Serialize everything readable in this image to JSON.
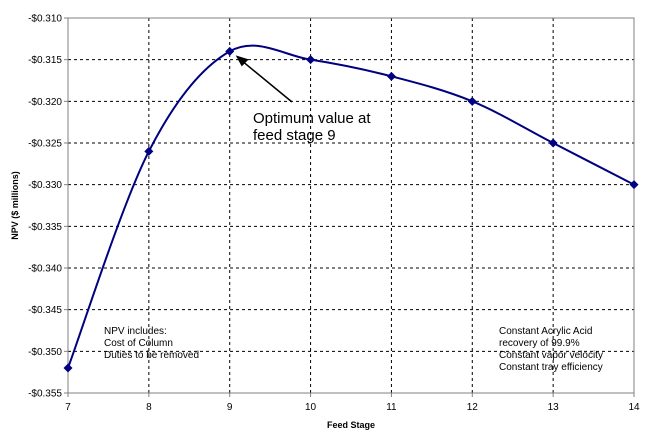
{
  "chart_data": {
    "type": "line",
    "title": "",
    "xlabel": "Feed Stage",
    "ylabel": "NPV ($ millions)",
    "xlim": [
      7,
      14
    ],
    "ylim": [
      -0.355,
      -0.31
    ],
    "x_ticks": [
      "7",
      "8",
      "9",
      "10",
      "11",
      "12",
      "13",
      "14"
    ],
    "y_ticks": [
      "-$0.310",
      "-$0.315",
      "-$0.320",
      "-$0.325",
      "-$0.330",
      "-$0.335",
      "-$0.340",
      "-$0.345",
      "-$0.350",
      "-$0.355"
    ],
    "grid": true,
    "legend": "none",
    "series": [
      {
        "x": [
          7,
          8,
          9,
          10,
          11,
          12,
          13,
          14
        ],
        "values": [
          -0.352,
          -0.326,
          -0.314,
          -0.315,
          -0.317,
          -0.32,
          -0.325,
          -0.33
        ],
        "color": "#000080",
        "marker": "diamond",
        "smoothed": true
      }
    ],
    "annotations": [
      {
        "text_lines": [
          "Optimum value at",
          "feed stage 9"
        ],
        "points_to_x": 9
      }
    ],
    "notes": {
      "left": [
        "NPV includes:",
        "Cost of Column",
        "Duties to be removed"
      ],
      "right": [
        "Constant Acrylic Acid",
        "recovery of 99.9%",
        "Constant vapor velocity",
        "Constant tray efficiency"
      ]
    }
  }
}
